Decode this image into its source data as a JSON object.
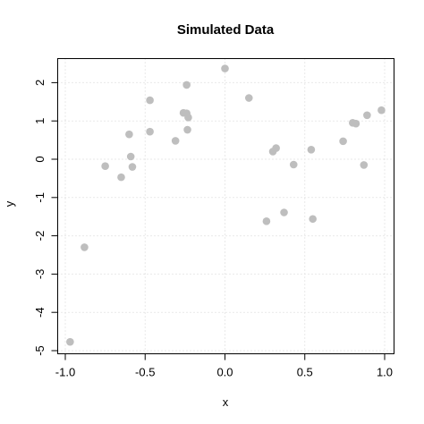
{
  "chart_data": {
    "type": "scatter",
    "title": "Simulated Data",
    "xlabel": "x",
    "ylabel": "y",
    "xlim": [
      -1.0,
      1.0
    ],
    "ylim": [
      -5,
      2.5
    ],
    "x_ticks": [
      -1.0,
      -0.5,
      0.0,
      0.5,
      1.0
    ],
    "x_tick_labels": [
      "-1.0",
      "-0.5",
      "0.0",
      "0.5",
      "1.0"
    ],
    "y_ticks": [
      -5,
      -4,
      -3,
      -2,
      -1,
      0,
      1,
      2
    ],
    "y_tick_labels": [
      "-5",
      "-4",
      "-3",
      "-2",
      "-1",
      "0",
      "1",
      "2"
    ],
    "grid": true,
    "point_color": "#bebebe",
    "points": [
      {
        "x": -0.97,
        "y": -4.77
      },
      {
        "x": -0.88,
        "y": -2.3
      },
      {
        "x": -0.75,
        "y": -0.18
      },
      {
        "x": -0.65,
        "y": -0.47
      },
      {
        "x": -0.6,
        "y": 0.65
      },
      {
        "x": -0.59,
        "y": 0.07
      },
      {
        "x": -0.58,
        "y": -0.2
      },
      {
        "x": -0.47,
        "y": 1.54
      },
      {
        "x": -0.47,
        "y": 0.72
      },
      {
        "x": -0.31,
        "y": 0.48
      },
      {
        "x": -0.26,
        "y": 1.21
      },
      {
        "x": -0.24,
        "y": 1.94
      },
      {
        "x": -0.24,
        "y": 1.2
      },
      {
        "x": -0.23,
        "y": 1.09
      },
      {
        "x": -0.235,
        "y": 0.77
      },
      {
        "x": 0.0,
        "y": 2.37
      },
      {
        "x": 0.15,
        "y": 1.6
      },
      {
        "x": 0.26,
        "y": -1.62
      },
      {
        "x": 0.3,
        "y": 0.2
      },
      {
        "x": 0.32,
        "y": 0.29
      },
      {
        "x": 0.37,
        "y": -1.39
      },
      {
        "x": 0.43,
        "y": -0.14
      },
      {
        "x": 0.54,
        "y": 0.25
      },
      {
        "x": 0.55,
        "y": -1.56
      },
      {
        "x": 0.74,
        "y": 0.47
      },
      {
        "x": 0.8,
        "y": 0.95
      },
      {
        "x": 0.82,
        "y": 0.93
      },
      {
        "x": 0.87,
        "y": -0.15
      },
      {
        "x": 0.89,
        "y": 1.15
      },
      {
        "x": 0.98,
        "y": 1.28
      }
    ]
  }
}
